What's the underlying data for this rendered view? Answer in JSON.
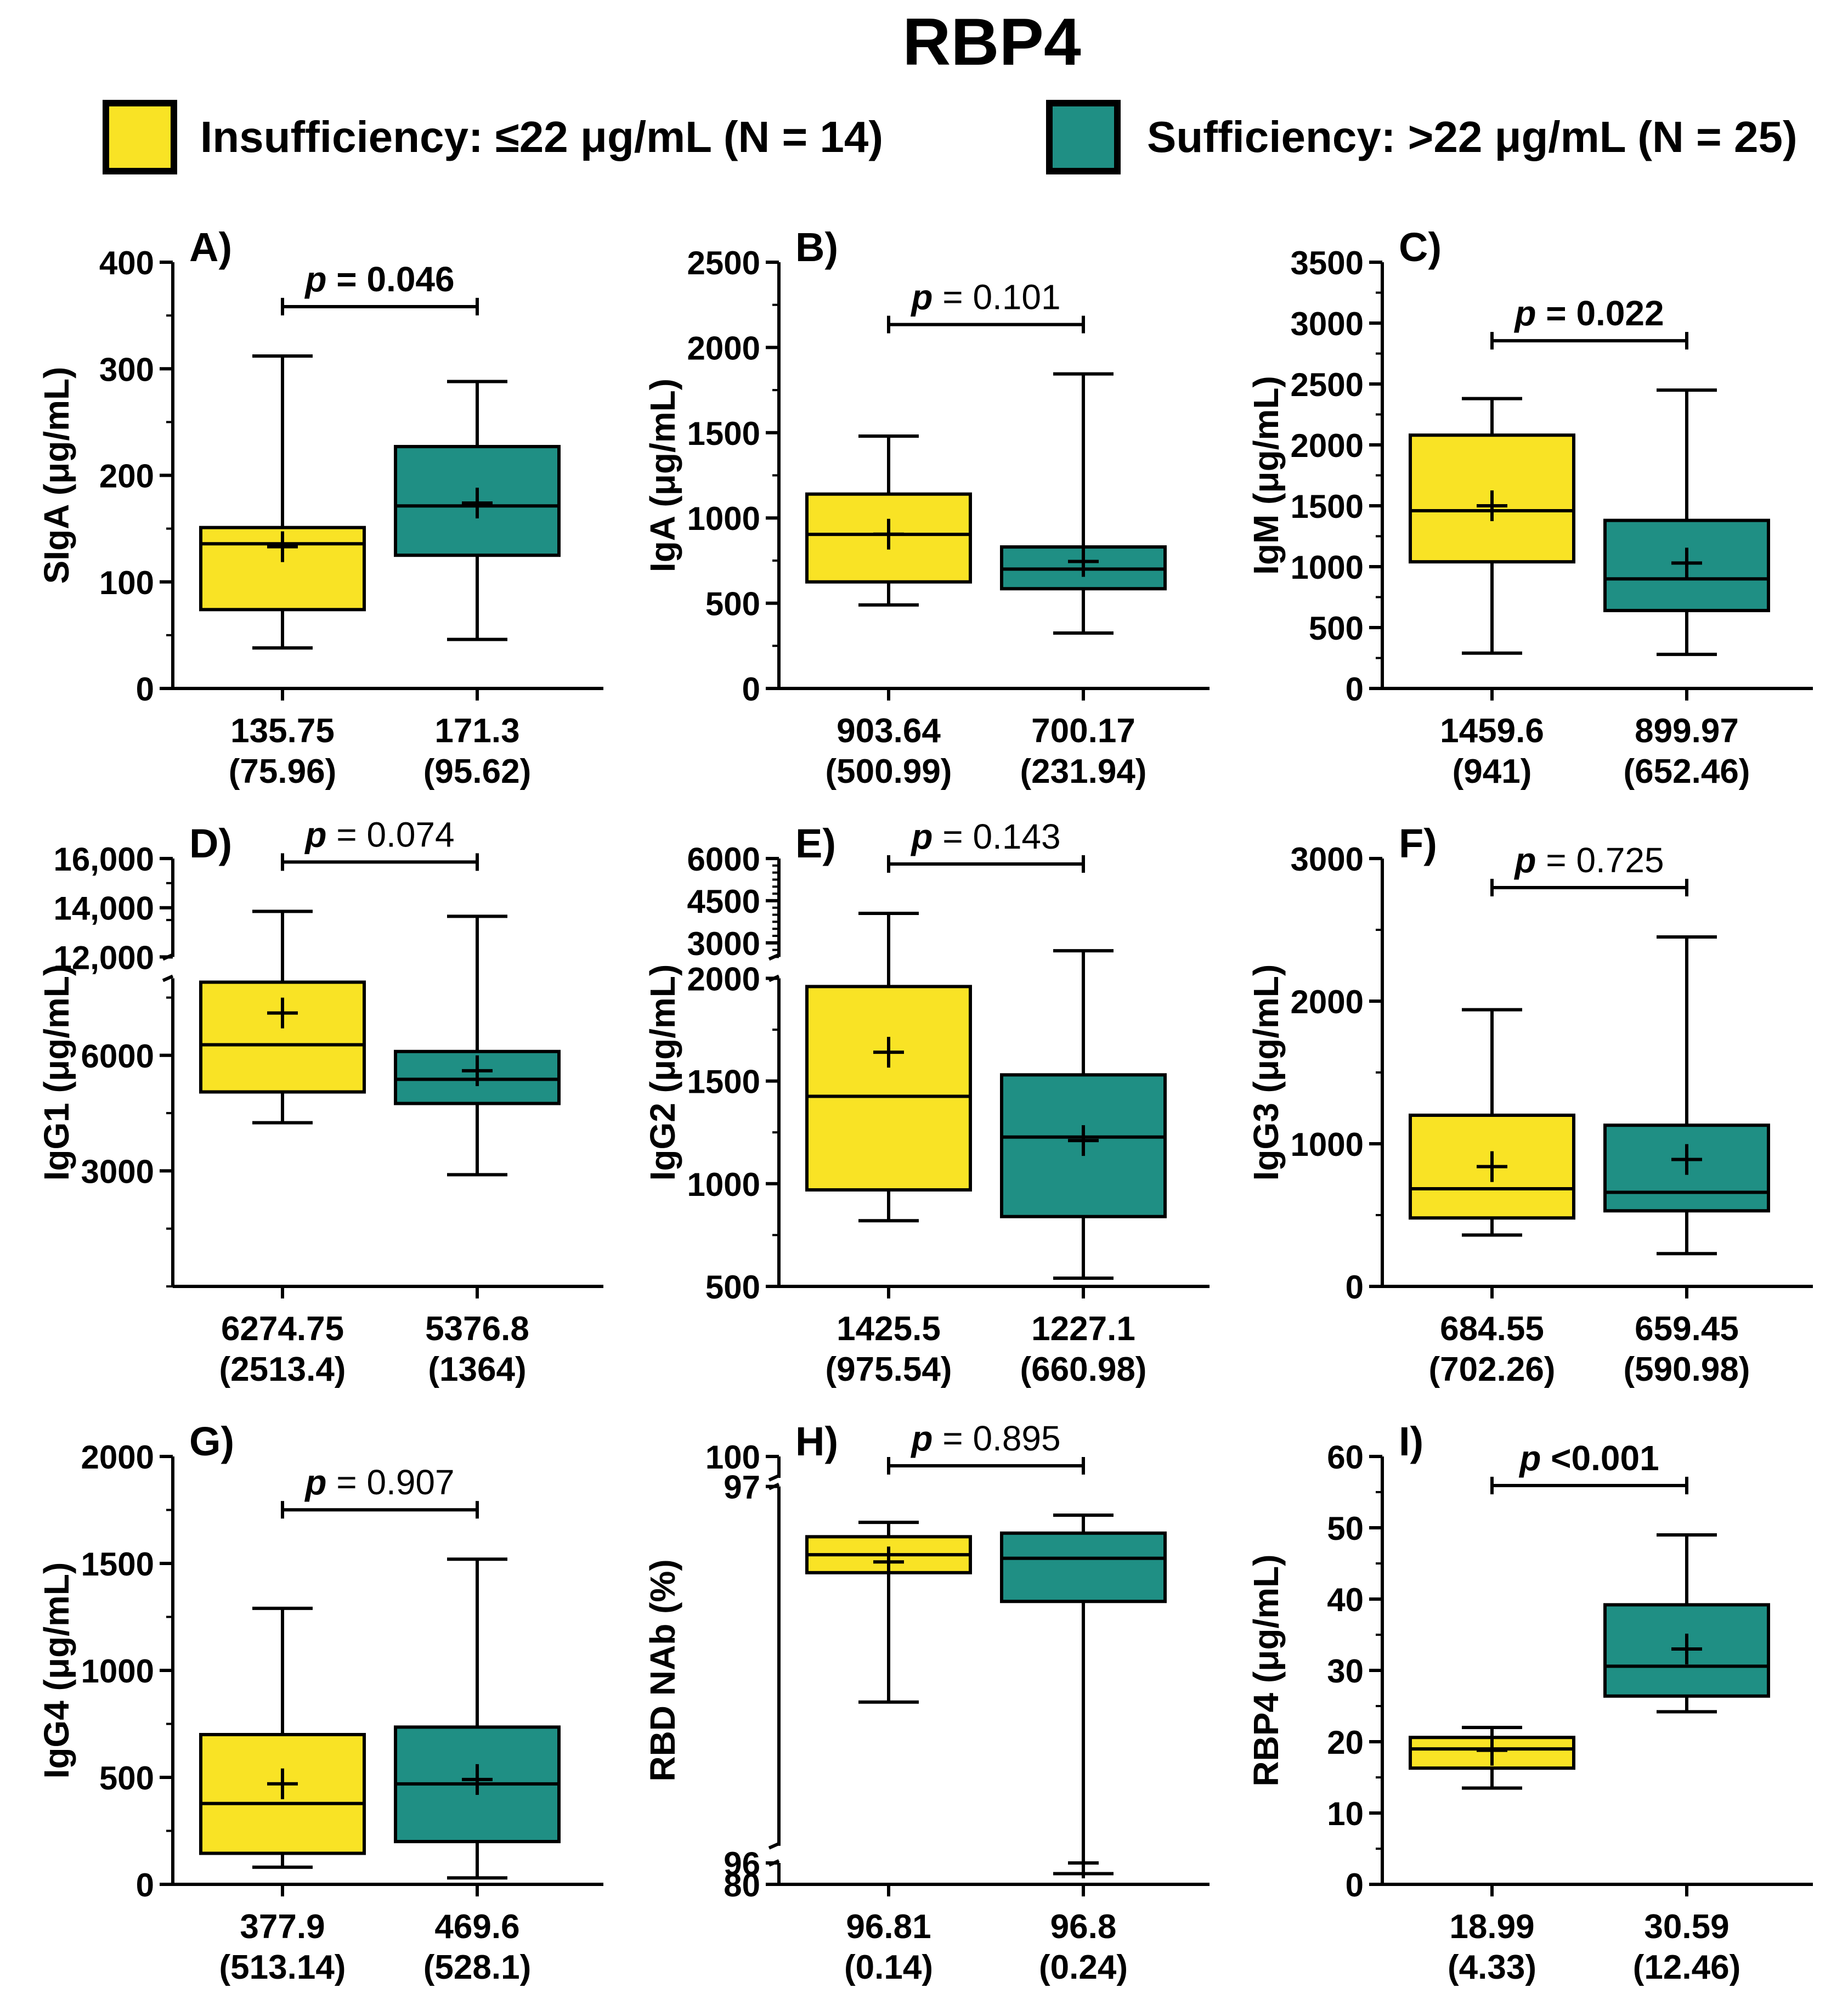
{
  "title": "RBP4",
  "legend": {
    "items": [
      {
        "label": "Insufficiency: ≤22 μg/mL (N = 14)",
        "color": "#F9E325"
      },
      {
        "label": "Sufficiency: >22 μg/mL (N = 25)",
        "color": "#1F8F84"
      }
    ],
    "border_color": "#000000"
  },
  "chart_data": [
    {
      "panel": "A)",
      "type": "box",
      "ylabel": "SIgA (μg/mL)",
      "ylim": [
        0,
        400
      ],
      "yticks": [
        "0",
        "100",
        "200",
        "300",
        "400"
      ],
      "ytick_values": [
        0,
        100,
        200,
        300,
        400
      ],
      "minor_step": 50,
      "p_label": "p",
      "p_value": " = 0.046",
      "p_bold": true,
      "groups": [
        {
          "min": 38,
          "q1": 74,
          "median": 135.75,
          "q3": 151,
          "max": 312,
          "mean": 133,
          "label_line1": "135.75",
          "label_line2": "(75.96)"
        },
        {
          "min": 46,
          "q1": 125,
          "median": 171.3,
          "q3": 227,
          "max": 288,
          "mean": 174,
          "label_line1": "171.3",
          "label_line2": "(95.62)"
        }
      ]
    },
    {
      "panel": "B)",
      "type": "box",
      "ylabel": "IgA (μg/mL)",
      "ylim": [
        0,
        2500
      ],
      "yticks": [
        "0",
        "500",
        "1000",
        "1500",
        "2000",
        "2500"
      ],
      "ytick_values": [
        0,
        500,
        1000,
        1500,
        2000,
        2500
      ],
      "minor_step": 250,
      "p_label": "p",
      "p_value": " = 0.101",
      "p_bold": false,
      "groups": [
        {
          "min": 490,
          "q1": 625,
          "median": 903.64,
          "q3": 1140,
          "max": 1480,
          "mean": 905,
          "label_line1": "903.64",
          "label_line2": "(500.99)"
        },
        {
          "min": 325,
          "q1": 585,
          "median": 700.17,
          "q3": 830,
          "max": 1845,
          "mean": 745,
          "label_line1": "700.17",
          "label_line2": "(231.94)"
        }
      ]
    },
    {
      "panel": "C)",
      "type": "box",
      "ylabel": "IgM (μg/mL)",
      "ylim": [
        0,
        3500
      ],
      "yticks": [
        "0",
        "500",
        "1000",
        "1500",
        "2000",
        "2500",
        "3000",
        "3500"
      ],
      "ytick_values": [
        0,
        500,
        1000,
        1500,
        2000,
        2500,
        3000,
        3500
      ],
      "minor_step": 250,
      "p_label": "p",
      "p_value": " = 0.022",
      "p_bold": true,
      "groups": [
        {
          "min": 290,
          "q1": 1040,
          "median": 1459.6,
          "q3": 2080,
          "max": 2380,
          "mean": 1500,
          "label_line1": "1459.6",
          "label_line2": "(941)"
        },
        {
          "min": 280,
          "q1": 640,
          "median": 899.97,
          "q3": 1380,
          "max": 2450,
          "mean": 1030,
          "label_line1": "899.97",
          "label_line2": "(652.46)"
        }
      ]
    },
    {
      "panel": "D)",
      "type": "box",
      "ylabel": "IgG1 (μg/mL)",
      "axis_break": {
        "lower": [
          0,
          8000
        ],
        "upper": [
          12000,
          16000
        ]
      },
      "yticks": [
        "3000",
        "6000",
        "12,000",
        "14,000",
        "16,000"
      ],
      "ytick_values": [
        3000,
        6000,
        12000,
        14000,
        16000
      ],
      "minor_step": 1500,
      "p_label": "p",
      "p_value": " = 0.074",
      "p_bold": false,
      "groups": [
        {
          "min": 4250,
          "q1": 5050,
          "median": 6274.75,
          "q3": 7900,
          "max": 13850,
          "mean": 7100,
          "label_line1": "6274.75",
          "label_line2": "(2513.4)"
        },
        {
          "min": 2900,
          "q1": 4750,
          "median": 5376.8,
          "q3": 6100,
          "max": 13650,
          "mean": 5600,
          "label_line1": "5376.8",
          "label_line2": "(1364)"
        }
      ]
    },
    {
      "panel": "E)",
      "type": "box",
      "ylabel": "IgG2 (μg/mL)",
      "axis_break": {
        "lower": [
          500,
          2000
        ],
        "upper": [
          2500,
          6000
        ]
      },
      "yticks": [
        "500",
        "1000",
        "1500",
        "2000",
        "3000",
        "4500",
        "6000"
      ],
      "ytick_values": [
        500,
        1000,
        1500,
        2000,
        3000,
        4500,
        6000
      ],
      "minor_step": 250,
      "p_label": "p",
      "p_value": " = 0.143",
      "p_bold": false,
      "groups": [
        {
          "min": 820,
          "q1": 970,
          "median": 1425.5,
          "q3": 1960,
          "max": 4050,
          "mean": 1640,
          "label_line1": "1425.5",
          "label_line2": "(975.54)"
        },
        {
          "min": 540,
          "q1": 840,
          "median": 1227.1,
          "q3": 1530,
          "max": 2720,
          "mean": 1210,
          "label_line1": "1227.1",
          "label_line2": "(660.98)"
        }
      ]
    },
    {
      "panel": "F)",
      "type": "box",
      "ylabel": "IgG3 (μg/mL)",
      "ylim": [
        0,
        3000
      ],
      "yticks": [
        "0",
        "1000",
        "2000",
        "3000"
      ],
      "ytick_values": [
        0,
        1000,
        2000,
        3000
      ],
      "minor_step": 500,
      "p_label": "p",
      "p_value": " = 0.725",
      "p_bold": false,
      "groups": [
        {
          "min": 360,
          "q1": 480,
          "median": 684.55,
          "q3": 1200,
          "max": 1940,
          "mean": 840,
          "label_line1": "684.55",
          "label_line2": "(702.26)"
        },
        {
          "min": 230,
          "q1": 530,
          "median": 659.45,
          "q3": 1130,
          "max": 2450,
          "mean": 890,
          "label_line1": "659.45",
          "label_line2": "(590.98)"
        }
      ]
    },
    {
      "panel": "G)",
      "type": "box",
      "ylabel": "IgG4 (μg/mL)",
      "ylim": [
        0,
        2000
      ],
      "yticks": [
        "0",
        "500",
        "1000",
        "1500",
        "2000"
      ],
      "ytick_values": [
        0,
        500,
        1000,
        1500,
        2000
      ],
      "minor_step": 250,
      "p_label": "p",
      "p_value": " = 0.907",
      "p_bold": false,
      "groups": [
        {
          "min": 80,
          "q1": 145,
          "median": 377.9,
          "q3": 700,
          "max": 1290,
          "mean": 470,
          "label_line1": "377.9",
          "label_line2": "(513.14)"
        },
        {
          "min": 30,
          "q1": 200,
          "median": 469.6,
          "q3": 735,
          "max": 1520,
          "mean": 490,
          "label_line1": "469.6",
          "label_line2": "(528.1)"
        }
      ]
    },
    {
      "panel": "H)",
      "type": "box",
      "ylabel": "RBD NAb (%)",
      "axis_break": {
        "lower": [
          80,
          96
        ],
        "upper": [
          96,
          97
        ],
        "top": [
          97,
          100
        ]
      },
      "yticks": [
        "80",
        "96",
        "97",
        "100"
      ],
      "ytick_values": [
        80,
        96,
        97,
        100
      ],
      "minor_step": 0,
      "p_label": "p",
      "p_value": " = 0.895",
      "p_bold": false,
      "groups": [
        {
          "min": 96.4,
          "q1": 96.76,
          "median": 96.81,
          "q3": 96.86,
          "max": 96.9,
          "mean": 96.79,
          "label_line1": "96.81",
          "label_line2": "(0.14)"
        },
        {
          "min": 88,
          "q1": 96.68,
          "median": 96.8,
          "q3": 96.87,
          "max": 96.92,
          "mean": 96.0,
          "label_line1": "96.8",
          "label_line2": "(0.24)"
        }
      ]
    },
    {
      "panel": "I)",
      "type": "box",
      "ylabel": "RBP4 (μg/mL)",
      "ylim": [
        0,
        60
      ],
      "yticks": [
        "0",
        "10",
        "20",
        "30",
        "40",
        "50",
        "60"
      ],
      "ytick_values": [
        0,
        10,
        20,
        30,
        40,
        50,
        60
      ],
      "minor_step": 5,
      "p_label": "p",
      "p_value": " <0.001",
      "p_bold": true,
      "groups": [
        {
          "min": 13.5,
          "q1": 16.3,
          "median": 18.99,
          "q3": 20.6,
          "max": 22,
          "mean": 18.8,
          "label_line1": "18.99",
          "label_line2": "(4.33)"
        },
        {
          "min": 24.2,
          "q1": 26.4,
          "median": 30.59,
          "q3": 39.2,
          "max": 49,
          "mean": 33,
          "label_line1": "30.59",
          "label_line2": "(12.46)"
        }
      ]
    }
  ]
}
